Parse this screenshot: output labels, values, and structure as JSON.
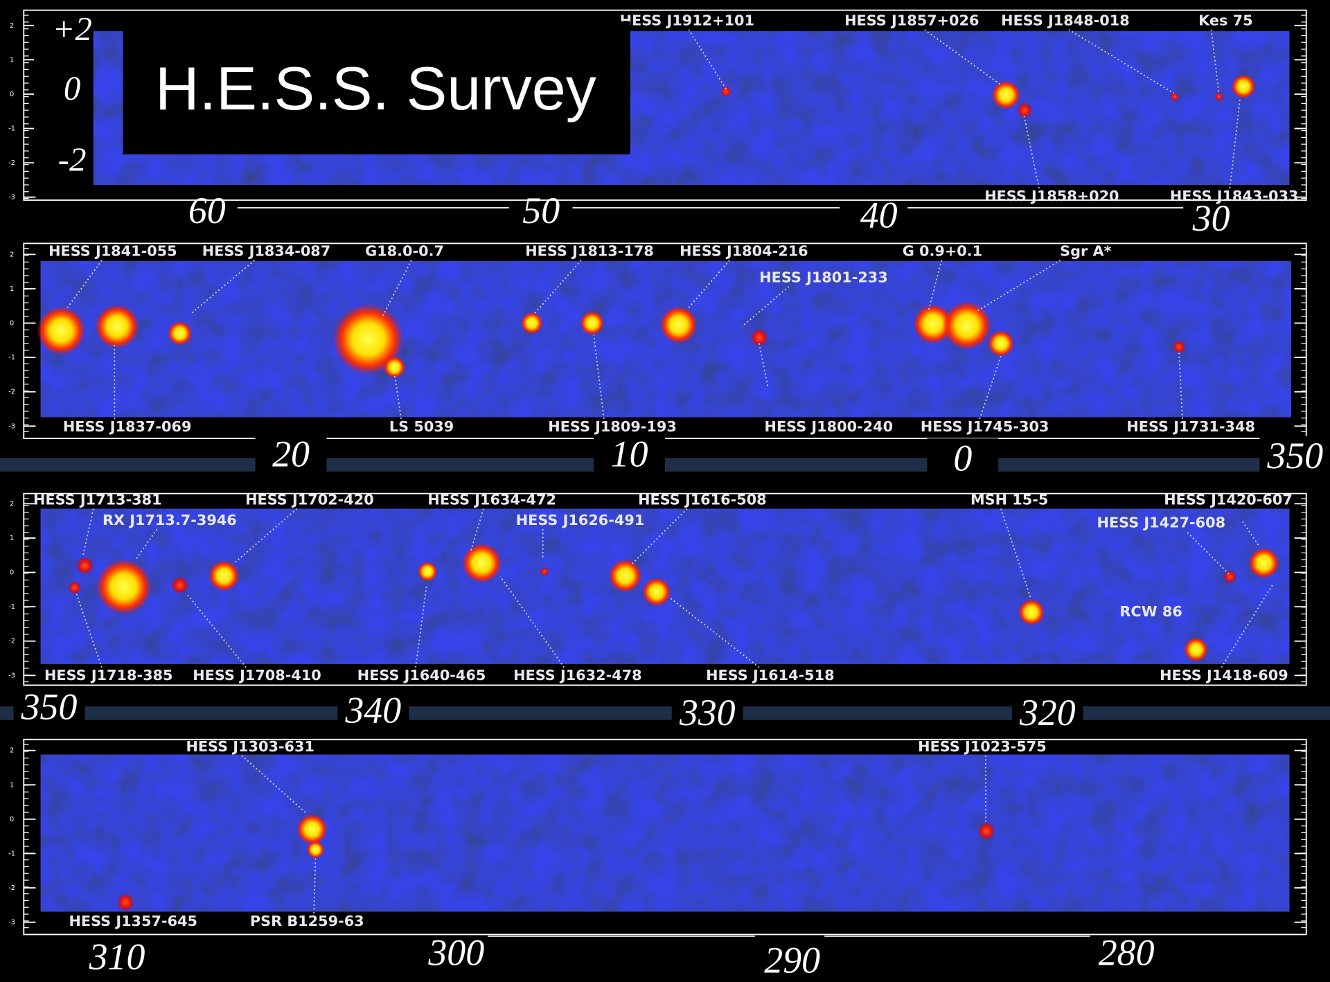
{
  "title": "H.E.S.S. Survey",
  "lat_labels": [
    "+2",
    "0",
    "-2"
  ],
  "lat_ticks": [
    "2",
    "1",
    "0",
    "-1",
    "-2",
    "-3"
  ],
  "panels": [
    {
      "longitudes": [
        "60",
        "50",
        "40",
        "30"
      ],
      "sources": [
        {
          "label": "HESS J1912+101"
        },
        {
          "label": "HESS J1857+026"
        },
        {
          "label": "HESS J1848-018"
        },
        {
          "label": "Kes 75"
        },
        {
          "label": "HESS J1858+020"
        },
        {
          "label": "HESS J1843-033"
        }
      ]
    },
    {
      "longitudes": [
        "20",
        "10",
        "0",
        "350"
      ],
      "sources": [
        {
          "label": "HESS J1841-055"
        },
        {
          "label": "HESS J1834-087"
        },
        {
          "label": "G18.0-0.7"
        },
        {
          "label": "HESS J1813-178"
        },
        {
          "label": "HESS J1804-216"
        },
        {
          "label": "HESS J1801-233"
        },
        {
          "label": "G 0.9+0.1"
        },
        {
          "label": "Sgr A*"
        },
        {
          "label": "HESS J1837-069"
        },
        {
          "label": "LS 5039"
        },
        {
          "label": "HESS J1809-193"
        },
        {
          "label": "HESS J1800-240"
        },
        {
          "label": "HESS J1745-303"
        },
        {
          "label": "HESS J1731-348"
        }
      ]
    },
    {
      "longitudes": [
        "350",
        "340",
        "330",
        "320"
      ],
      "sources": [
        {
          "label": "HESS J1713-381"
        },
        {
          "label": "RX J1713.7-3946"
        },
        {
          "label": "HESS J1702-420"
        },
        {
          "label": "HESS J1634-472"
        },
        {
          "label": "HESS J1626-491"
        },
        {
          "label": "HESS J1616-508"
        },
        {
          "label": "MSH 15-5"
        },
        {
          "label": "HESS J1420-607"
        },
        {
          "label": "HESS J1427-608"
        },
        {
          "label": "RCW 86"
        },
        {
          "label": "HESS J1718-385"
        },
        {
          "label": "HESS J1708-410"
        },
        {
          "label": "HESS J1640-465"
        },
        {
          "label": "HESS J1632-478"
        },
        {
          "label": "HESS J1614-518"
        },
        {
          "label": "HESS J1418-609"
        }
      ]
    },
    {
      "longitudes": [
        "310",
        "300",
        "290",
        "280"
      ],
      "sources": [
        {
          "label": "HESS J1303-631"
        },
        {
          "label": "HESS J1023-575"
        },
        {
          "label": "HESS J1357-645"
        },
        {
          "label": "PSR B1259-63"
        }
      ]
    }
  ]
}
